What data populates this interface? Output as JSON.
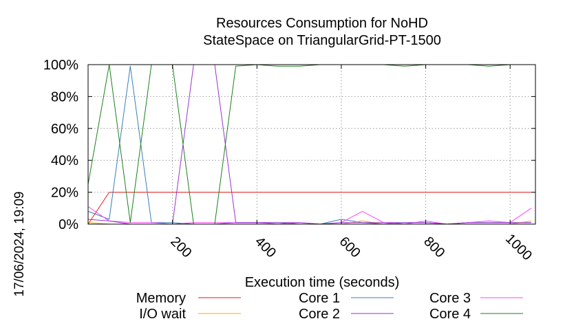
{
  "chart_data": {
    "type": "line",
    "title": "Resources Consumption for NoHD",
    "subtitle": "StateSpace on TriangularGrid-PT-1500",
    "xlabel": "Execution time (seconds)",
    "ylabel": "",
    "side_label": "17/06/2024, 19:09",
    "xlim": [
      0,
      1060
    ],
    "ylim": [
      0,
      100
    ],
    "x_ticks": [
      200,
      400,
      600,
      800,
      1000
    ],
    "y_ticks": [
      0,
      20,
      40,
      60,
      80,
      100
    ],
    "y_tick_labels": [
      "0%",
      "20%",
      "40%",
      "60%",
      "80%",
      "100%"
    ],
    "grid": true,
    "legend_position": "bottom",
    "series": [
      {
        "name": "Memory",
        "color": "#e41a1c",
        "x": [
          0,
          50,
          100,
          150,
          200,
          250,
          300,
          350,
          400,
          450,
          500,
          550,
          600,
          650,
          700,
          750,
          800,
          850,
          900,
          950,
          1000,
          1050
        ],
        "y": [
          0,
          20,
          20,
          20,
          20,
          20,
          20,
          20,
          20,
          20,
          20,
          20,
          20,
          20,
          20,
          20,
          20,
          20,
          20,
          20,
          20,
          20
        ]
      },
      {
        "name": "Core 1",
        "color": "#377eb8",
        "x": [
          0,
          50,
          100,
          150,
          200,
          250,
          300,
          350,
          400,
          450,
          500,
          550,
          600,
          650,
          700,
          750,
          800,
          850,
          900,
          950,
          1000,
          1050
        ],
        "y": [
          8,
          3,
          99,
          1,
          1,
          0,
          0,
          1,
          1,
          1,
          0,
          0,
          3,
          1,
          0,
          1,
          1,
          0,
          1,
          1,
          1,
          1
        ]
      },
      {
        "name": "Core 3",
        "color": "#ff40ff",
        "x": [
          0,
          50,
          100,
          150,
          200,
          250,
          300,
          350,
          400,
          450,
          500,
          550,
          600,
          650,
          700,
          750,
          800,
          850,
          900,
          950,
          1000,
          1050
        ],
        "y": [
          11,
          2,
          1,
          1,
          0,
          1,
          1,
          1,
          1,
          0,
          1,
          0,
          1,
          8,
          1,
          0,
          2,
          0,
          1,
          2,
          1,
          10
        ]
      },
      {
        "name": "I/O wait",
        "color": "#ffa500",
        "x": [
          0,
          50,
          100,
          150,
          200,
          250,
          300,
          350,
          400,
          450,
          500,
          550,
          600,
          650,
          700,
          750,
          800,
          850,
          900,
          950,
          1000,
          1050
        ],
        "y": [
          1,
          0,
          0,
          0,
          0,
          0,
          0,
          0,
          0,
          0,
          0,
          0,
          0,
          2,
          0,
          0,
          0,
          0,
          0,
          0,
          0,
          2
        ]
      },
      {
        "name": "Core 2",
        "color": "#9932cc",
        "x": [
          0,
          50,
          100,
          150,
          200,
          250,
          300,
          350,
          400,
          450,
          500,
          550,
          600,
          650,
          700,
          750,
          800,
          850,
          900,
          950,
          1000,
          1050
        ],
        "y": [
          3,
          2,
          0,
          0,
          0,
          100,
          100,
          1,
          1,
          1,
          1,
          0,
          1,
          1,
          1,
          1,
          1,
          0,
          1,
          1,
          1,
          1
        ]
      },
      {
        "name": "Core 4",
        "color": "#1a801a",
        "x": [
          0,
          50,
          100,
          150,
          200,
          250,
          300,
          350,
          400,
          450,
          500,
          550,
          600,
          650,
          700,
          750,
          800,
          850,
          900,
          950,
          1000,
          1050
        ],
        "y": [
          25,
          100,
          1,
          100,
          100,
          0,
          0,
          99,
          100,
          99,
          99,
          100,
          100,
          100,
          100,
          99,
          100,
          100,
          100,
          99,
          100,
          100
        ]
      }
    ],
    "legend_order": [
      "Memory",
      "Core 1",
      "Core 3",
      "I/O wait",
      "Core 2",
      "Core 4"
    ]
  }
}
